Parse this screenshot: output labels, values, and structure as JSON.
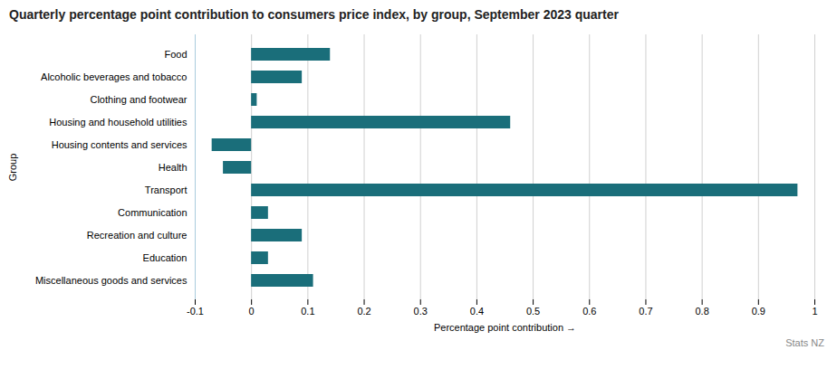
{
  "chart_data": {
    "type": "bar",
    "orientation": "horizontal",
    "title": "Quarterly percentage point contribution to consumers price index, by group, September 2023 quarter",
    "xlabel": "Percentage point contribution",
    "ylabel": "Group",
    "annotations": [
      "Stats NZ"
    ],
    "categories": [
      "Miscellaneous goods and services",
      "Education",
      "Recreation and culture",
      "Communication",
      "Transport",
      "Health",
      "Housing contents and services",
      "Housing and household utilities",
      "Clothing and footwear",
      "Alcoholic beverages and tobacco",
      "Food"
    ],
    "values": [
      0.11,
      0.03,
      0.09,
      0.03,
      0.97,
      -0.05,
      -0.07,
      0.46,
      0.01,
      0.09,
      0.14
    ],
    "color": "#1a6e7a",
    "xlim": [
      -0.1,
      1.0
    ],
    "xticks": [
      -0.1,
      0,
      0.1,
      0.2,
      0.3,
      0.4,
      0.5,
      0.6,
      0.7,
      0.8,
      0.9,
      1
    ],
    "grid": true
  }
}
